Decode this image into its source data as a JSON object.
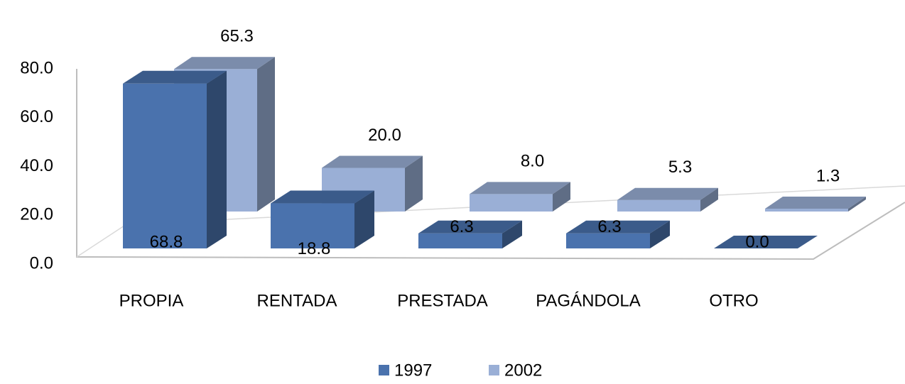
{
  "chart_data": {
    "type": "bar3d",
    "categories": [
      "PROPIA",
      "RENTADA",
      "PRESTADA",
      "PAGÁNDOLA",
      "OTRO"
    ],
    "series": [
      {
        "name": "1997",
        "color": "#4a72ad",
        "values": [
          68.8,
          18.8,
          6.3,
          6.3,
          0.0
        ],
        "value_labels": [
          "68.8",
          "18.8",
          "6.3",
          "6.3",
          "0.0"
        ]
      },
      {
        "name": "2002",
        "color": "#9aafd6",
        "values": [
          65.3,
          20.0,
          8.0,
          5.3,
          1.3
        ],
        "value_labels": [
          "65.3",
          "20.0",
          "8.0",
          "5.3",
          "1.3"
        ]
      }
    ],
    "ylim": [
      0,
      80
    ],
    "yticks": [
      {
        "value": 0,
        "label": "0.0"
      },
      {
        "value": 20,
        "label": "20.0"
      },
      {
        "value": 40,
        "label": "40.0"
      },
      {
        "value": 60,
        "label": "60.0"
      },
      {
        "value": 80,
        "label": "80.0"
      }
    ],
    "legend": "bottom"
  }
}
